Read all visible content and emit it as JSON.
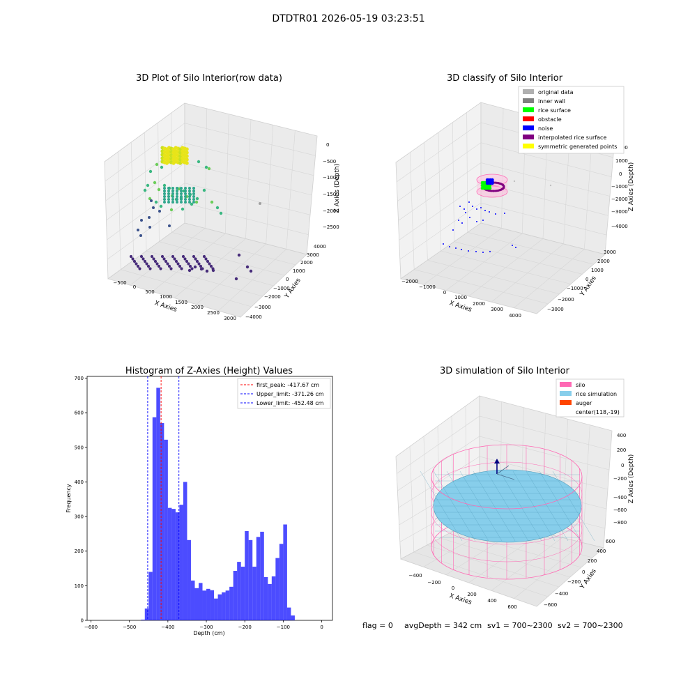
{
  "figure_title": "DTDTR01 2026-05-19 03:23:51",
  "footer": {
    "flag": "flag = 0",
    "avg_depth": "avgDepth = 342 cm",
    "sv1": "sv1 = 700~2300",
    "sv2": "sv2 = 700~2300"
  },
  "colors": {
    "histogram_bar": "#0000ff",
    "peak_line": "#ff0000",
    "limit_line": "#0000ff",
    "original_data": "#b0b0b0",
    "inner_wall": "#808080",
    "rice_surface": "#00ff00",
    "obstacle": "#ff0000",
    "noise": "#0000ff",
    "interpolated_rice_surface": "#800080",
    "symmetric_generated_points": "#ffff00",
    "silo": "#ff69b4",
    "rice_simulation": "#87ceeb",
    "auger": "#ff4500"
  },
  "chart_data": [
    {
      "type": "scatter",
      "title": "3D Plot of Silo Interior(row data)",
      "xlabel": "X Axies",
      "ylabel": "Y Axies",
      "zlabel": "Z Axies (Depth)",
      "xticks": [
        "−500",
        "0",
        "500",
        "1000",
        "1500",
        "2000",
        "2500",
        "3000"
      ],
      "yticks": [
        "−4000",
        "−3000",
        "−2000",
        "−1000",
        "0",
        "1000",
        "2000",
        "3000",
        "4000"
      ],
      "zticks": [
        "−2500",
        "−2000",
        "−1500",
        "−1000",
        "−500",
        "0"
      ],
      "projection": "3d",
      "colormap": "viridis"
    },
    {
      "type": "scatter",
      "title": "3D classify of Silo Interior",
      "xlabel": "X Axies",
      "ylabel": "Y Axies",
      "zlabel": "Z Axies (Depth)",
      "xticks": [
        "−2000",
        "−1000",
        "0",
        "1000",
        "2000",
        "3000",
        "4000"
      ],
      "yticks": [
        "−3000",
        "−2000",
        "−1000",
        "0",
        "1000",
        "2000",
        "3000"
      ],
      "zticks": [
        "−4000",
        "−3000",
        "−2000",
        "−1000",
        "0",
        "1000",
        "2000"
      ],
      "legend": [
        "original data",
        "inner wall",
        "rice surface",
        "obstacle",
        "noise",
        "interpolated rice surface",
        "symmetric generated points"
      ],
      "legend_position": "top-right",
      "projection": "3d"
    },
    {
      "type": "bar",
      "title": "Histogram of Z-Axies (Height) Values",
      "xlabel": "Depth (cm)",
      "ylabel": "Frequency",
      "xlim": [
        -610,
        28
      ],
      "ylim": [
        0,
        705
      ],
      "xticks": [
        "−600",
        "−500",
        "−400",
        "−300",
        "−200",
        "−100",
        "0"
      ],
      "yticks": [
        "0",
        "100",
        "200",
        "300",
        "400",
        "500",
        "600",
        "700"
      ],
      "bin_start": -470,
      "bin_width": 10,
      "values": [
        2,
        34,
        140,
        587,
        672,
        570,
        522,
        325,
        322,
        312,
        334,
        400,
        232,
        115,
        93,
        108,
        86,
        91,
        87,
        63,
        75,
        81,
        86,
        97,
        143,
        169,
        155,
        258,
        232,
        155,
        241,
        256,
        125,
        105,
        127,
        180,
        221,
        277,
        37,
        14
      ],
      "lines": [
        {
          "label": "first_peak: -417.67 cm",
          "x": -417.67,
          "style": "red-dashed"
        },
        {
          "label": "Upper_limit: -371.26 cm",
          "x": -371.26,
          "style": "blue-dashed"
        },
        {
          "label": "Lower_limit: -452.48 cm",
          "x": -452.48,
          "style": "blue-dashed"
        }
      ],
      "legend_position": "top-right"
    },
    {
      "type": "surface",
      "title": "3D simulation of Silo Interior",
      "xlabel": "X Axies",
      "ylabel": "Y Axies",
      "zlabel": "Z Axies (Depth)",
      "xticks": [
        "−400",
        "−200",
        "0",
        "200",
        "400",
        "600"
      ],
      "yticks": [
        "−600",
        "−400",
        "−200",
        "0",
        "200",
        "400",
        "600"
      ],
      "zticks": [
        "−800",
        "−600",
        "−400",
        "−200",
        "0",
        "200",
        "400"
      ],
      "legend": [
        "silo",
        "rice simulation",
        "auger",
        "center(118,-19)"
      ],
      "legend_position": "top-right",
      "projection": "3d"
    }
  ]
}
